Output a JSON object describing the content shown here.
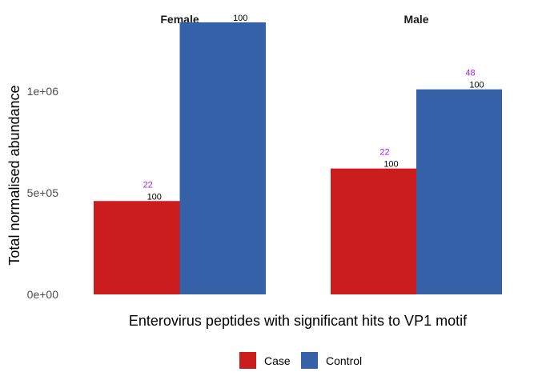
{
  "chart_data": {
    "type": "bar",
    "xlabel": "Enterovirus peptides with significant hits to VP1 motif",
    "ylabel": "Total normalised abundance",
    "ylim": [
      0,
      1450000
    ],
    "yticks": [
      0,
      500000,
      1000000
    ],
    "ytick_labels": [
      "0e+00",
      "5e+05",
      "1e+06"
    ],
    "grid": false,
    "legend_placement": "bottom",
    "facets": [
      {
        "name": "Female",
        "bars": [
          {
            "group": "Case",
            "value": 460000,
            "label": "100",
            "top_label": "22"
          },
          {
            "group": "Control",
            "value": 1340000,
            "label": "100",
            "top_label": ""
          }
        ]
      },
      {
        "name": "Male",
        "bars": [
          {
            "group": "Case",
            "value": 620000,
            "label": "100",
            "top_label": "22"
          },
          {
            "group": "Control",
            "value": 1010000,
            "label": "100",
            "top_label": "48"
          }
        ]
      }
    ],
    "legend": [
      {
        "name": "Case",
        "color": "#cb1c1e"
      },
      {
        "name": "Control",
        "color": "#3461a8"
      }
    ]
  }
}
